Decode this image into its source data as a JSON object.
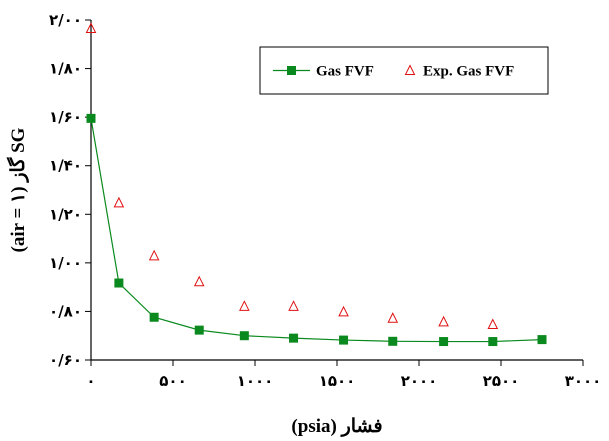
{
  "chart_data": {
    "type": "scatter",
    "xlabel": "فشار (psia)",
    "ylabel": "SG گاز (air = ۱)",
    "xlim": [
      0,
      3000
    ],
    "ylim": [
      0.6,
      2.0
    ],
    "x_ticks": [
      {
        "value": 0,
        "label": "۰"
      },
      {
        "value": 500,
        "label": "۵۰۰"
      },
      {
        "value": 1000,
        "label": "۱۰۰۰"
      },
      {
        "value": 1500,
        "label": "۱۵۰۰"
      },
      {
        "value": 2000,
        "label": "۲۰۰۰"
      },
      {
        "value": 2500,
        "label": "۲۵۰۰"
      },
      {
        "value": 3000,
        "label": "۳۰۰۰"
      }
    ],
    "y_ticks": [
      {
        "value": 0.6,
        "label": "۰/۶۰"
      },
      {
        "value": 0.8,
        "label": "۰/۸۰"
      },
      {
        "value": 1.0,
        "label": "۱/۰۰"
      },
      {
        "value": 1.2,
        "label": "۱/۲۰"
      },
      {
        "value": 1.4,
        "label": "۱/۴۰"
      },
      {
        "value": 1.6,
        "label": "۱/۶۰"
      },
      {
        "value": 1.8,
        "label": "۱/۸۰"
      },
      {
        "value": 2.0,
        "label": "۲/۰۰"
      }
    ],
    "grid": false,
    "legend": "top-right",
    "series": [
      {
        "name": "Gas FVF",
        "style": "line-square",
        "color": "#0a8a1e",
        "points": [
          [
            0,
            1.595
          ],
          [
            170,
            0.917
          ],
          [
            385,
            0.776
          ],
          [
            660,
            0.723
          ],
          [
            935,
            0.7
          ],
          [
            1235,
            0.69
          ],
          [
            1540,
            0.682
          ],
          [
            1840,
            0.677
          ],
          [
            2150,
            0.676
          ],
          [
            2450,
            0.676
          ],
          [
            2750,
            0.684
          ]
        ]
      },
      {
        "name": "Exp. Gas FVF",
        "style": "triangle",
        "color": "#e01010",
        "points": [
          [
            0,
            1.965
          ],
          [
            170,
            1.247
          ],
          [
            385,
            1.029
          ],
          [
            660,
            0.922
          ],
          [
            935,
            0.821
          ],
          [
            1235,
            0.821
          ],
          [
            1540,
            0.798
          ],
          [
            1840,
            0.772
          ],
          [
            2150,
            0.757
          ],
          [
            2450,
            0.746
          ]
        ]
      }
    ]
  }
}
